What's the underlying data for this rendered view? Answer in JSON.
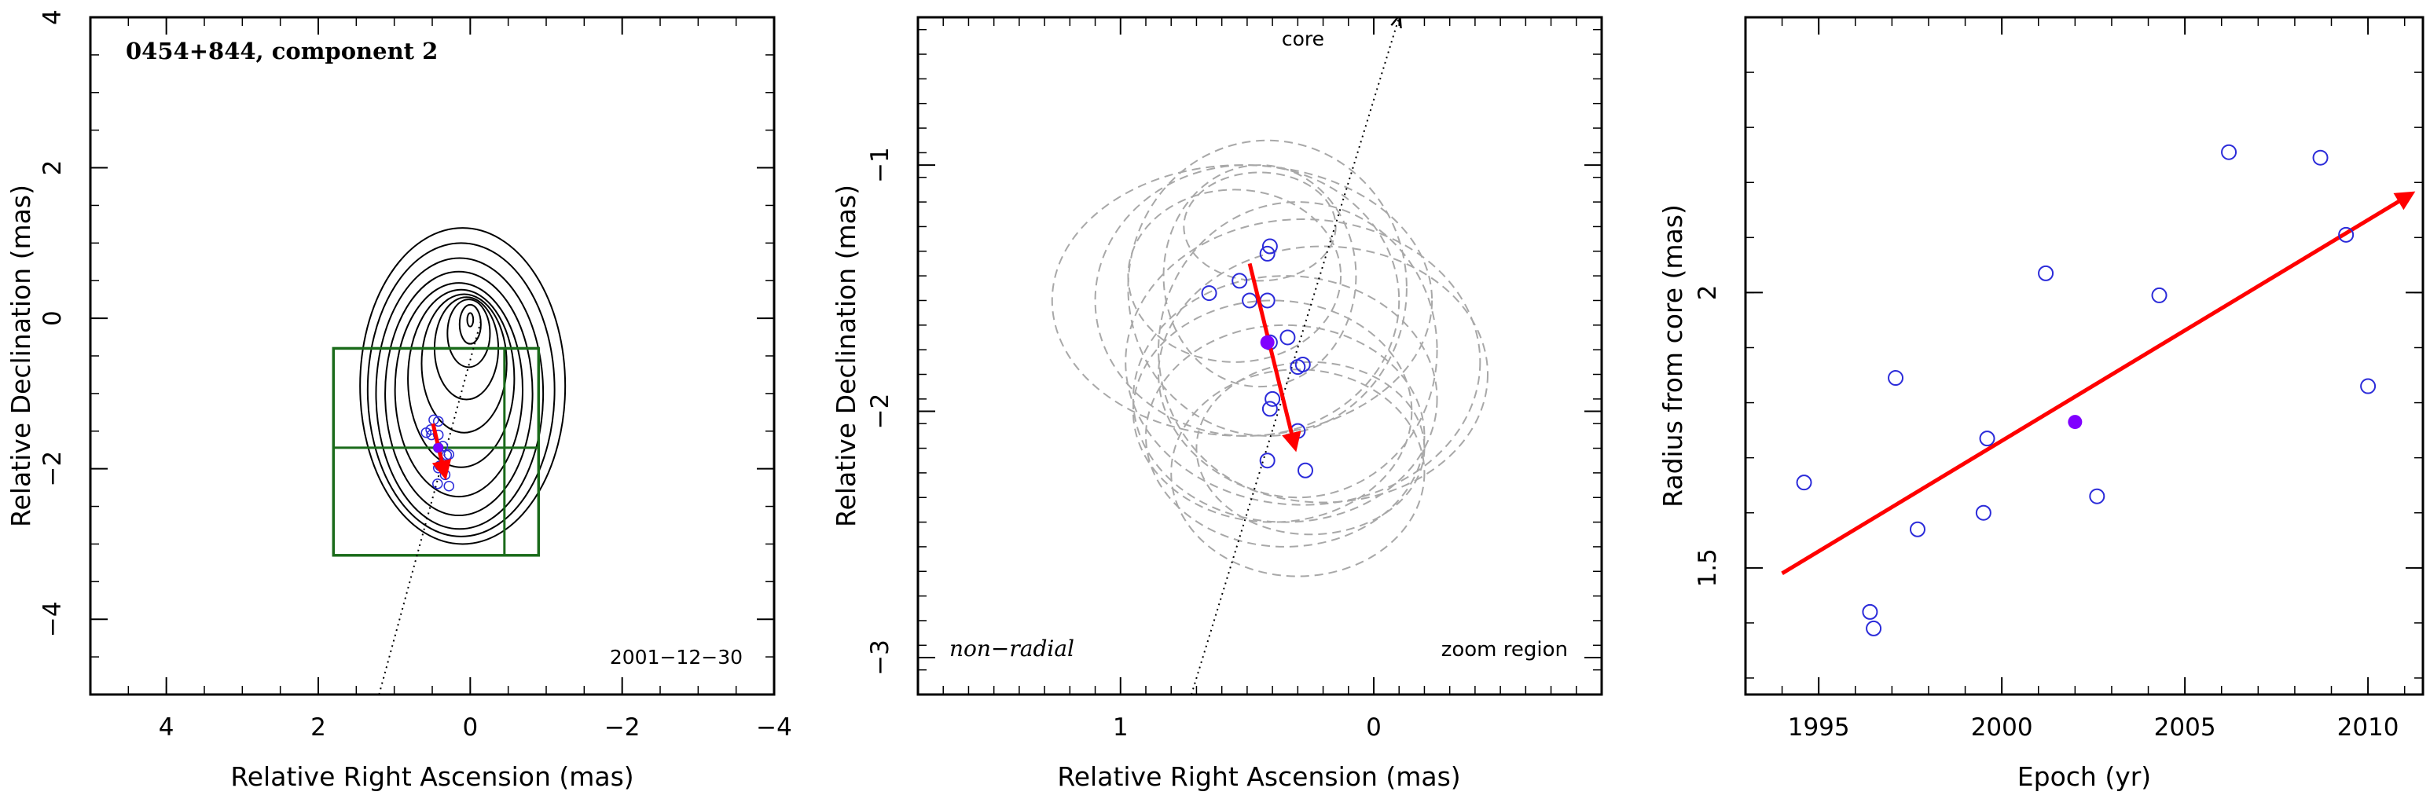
{
  "chart_data": [
    {
      "type": "scatter",
      "title": "0454+844, component 2",
      "annotation": "2001−12−30",
      "xlabel": "Relative Right Ascension (mas)",
      "ylabel": "Relative Declination (mas)",
      "xlim": [
        5,
        -4
      ],
      "ylim": [
        -5,
        4
      ],
      "xticks": [
        4,
        2,
        0,
        -2,
        -4
      ],
      "xtick_labels": [
        "4",
        "2",
        "0",
        "−2",
        "−4"
      ],
      "yticks": [
        -4,
        -2,
        0,
        2,
        4
      ],
      "ytick_labels": [
        "−4",
        "−2",
        "0",
        "2",
        "4"
      ],
      "contours": [
        {
          "cx": 0.1,
          "cy": -0.9,
          "rx": 1.35,
          "ry": 2.1
        },
        {
          "cx": 0.12,
          "cy": -0.95,
          "rx": 1.23,
          "ry": 1.95
        },
        {
          "cx": 0.14,
          "cy": -1.0,
          "rx": 1.1,
          "ry": 1.8
        },
        {
          "cx": 0.15,
          "cy": -1.0,
          "rx": 0.97,
          "ry": 1.62
        },
        {
          "cx": 0.15,
          "cy": -0.95,
          "rx": 0.84,
          "ry": 1.42
        },
        {
          "cx": 0.12,
          "cy": -0.8,
          "rx": 0.7,
          "ry": 1.18
        },
        {
          "cx": 0.08,
          "cy": -0.6,
          "rx": 0.56,
          "ry": 0.92
        },
        {
          "cx": 0.05,
          "cy": -0.4,
          "rx": 0.42,
          "ry": 0.68
        },
        {
          "cx": 0.02,
          "cy": -0.2,
          "rx": 0.28,
          "ry": 0.45
        },
        {
          "cx": 0.0,
          "cy": -0.08,
          "rx": 0.14,
          "ry": 0.26
        },
        {
          "cx": 0.0,
          "cy": -0.02,
          "rx": 0.04,
          "ry": 0.09
        }
      ],
      "zoom_box": {
        "x": [
          1.8,
          -0.9
        ],
        "y": [
          -3.15,
          -0.4
        ],
        "x_mid": -0.45,
        "y_mid": -1.72,
        "color": "#1a6b1a"
      },
      "jet_line": {
        "x": [
          1.2,
          -0.15
        ],
        "y": [
          -5.0,
          0.0
        ]
      },
      "points": {
        "ra": [
          0.48,
          0.42,
          0.42,
          0.58,
          0.52,
          0.51,
          0.42,
          0.36,
          0.31,
          0.28,
          0.4,
          0.42,
          0.33,
          0.43,
          0.28
        ],
        "dec": [
          -1.35,
          -1.37,
          -1.55,
          -1.52,
          -1.48,
          -1.55,
          -1.72,
          -1.7,
          -1.82,
          -1.81,
          -1.96,
          -1.99,
          -2.08,
          -2.2,
          -2.23
        ],
        "color": "#2b2bd9"
      },
      "mean_position": {
        "ra": 0.42,
        "dec": -1.72,
        "color": "#8000ff"
      },
      "motion_vector": {
        "from": [
          0.49,
          -1.4
        ],
        "to": [
          0.33,
          -2.1
        ],
        "color": "#ff0000"
      }
    },
    {
      "type": "scatter",
      "annotations": [
        "core",
        "non−radial",
        "zoom region"
      ],
      "xlabel": "Relative Right Ascension (mas)",
      "ylabel": "Relative Declination (mas)",
      "xlim": [
        1.8,
        -0.9
      ],
      "ylim": [
        -3.15,
        -0.4
      ],
      "xticks": [
        1,
        0
      ],
      "xtick_labels": [
        "1",
        "0"
      ],
      "yticks": [
        -3,
        -2,
        -1
      ],
      "ytick_labels": [
        "−3",
        "−2",
        "−1"
      ],
      "jet_line": {
        "x": [
          0.72,
          -0.1
        ],
        "y": [
          -3.15,
          -0.4
        ]
      },
      "points": {
        "ra": [
          0.41,
          0.42,
          0.42,
          0.65,
          0.53,
          0.49,
          0.41,
          0.34,
          0.3,
          0.28,
          0.4,
          0.41,
          0.3,
          0.42,
          0.27
        ],
        "dec": [
          -1.33,
          -1.36,
          -1.55,
          -1.52,
          -1.47,
          -1.55,
          -1.72,
          -1.7,
          -1.82,
          -1.81,
          -1.95,
          -1.99,
          -2.08,
          -2.2,
          -2.24
        ],
        "color": "#2b2bd9"
      },
      "mean_position": {
        "ra": 0.42,
        "dec": -1.72,
        "color": "#8000ff"
      },
      "error_ellipses": [
        {
          "cx": 0.45,
          "cy": -1.45,
          "rx": 0.38,
          "ry": 0.45
        },
        {
          "cx": 0.42,
          "cy": -1.5,
          "rx": 0.55,
          "ry": 0.6
        },
        {
          "cx": 0.5,
          "cy": -1.55,
          "rx": 0.6,
          "ry": 0.55
        },
        {
          "cx": 0.52,
          "cy": -1.55,
          "rx": 0.75,
          "ry": 0.55
        },
        {
          "cx": 0.3,
          "cy": -1.75,
          "rx": 0.55,
          "ry": 0.6
        },
        {
          "cx": 0.28,
          "cy": -1.8,
          "rx": 0.7,
          "ry": 0.58
        },
        {
          "cx": 0.2,
          "cy": -1.85,
          "rx": 0.65,
          "ry": 0.52
        },
        {
          "cx": 0.35,
          "cy": -1.95,
          "rx": 0.6,
          "ry": 0.5
        },
        {
          "cx": 0.4,
          "cy": -2.0,
          "rx": 0.55,
          "ry": 0.45
        },
        {
          "cx": 0.35,
          "cy": -2.1,
          "rx": 0.55,
          "ry": 0.45
        },
        {
          "cx": 0.3,
          "cy": -2.25,
          "rx": 0.5,
          "ry": 0.42
        },
        {
          "cx": 0.45,
          "cy": -1.25,
          "rx": 0.3,
          "ry": 0.22
        },
        {
          "cx": 0.55,
          "cy": -1.45,
          "rx": 0.42,
          "ry": 0.35
        },
        {
          "cx": 0.25,
          "cy": -2.15,
          "rx": 0.45,
          "ry": 0.35
        }
      ],
      "motion_vector": {
        "from": [
          0.49,
          -1.4
        ],
        "to": [
          0.31,
          -2.15
        ],
        "color": "#ff0000"
      }
    },
    {
      "type": "scatter",
      "xlabel": "Epoch (yr)",
      "ylabel": "Radius from core (mas)",
      "xlim": [
        1993,
        2011.5
      ],
      "ylim": [
        1.27,
        2.5
      ],
      "xticks": [
        1995,
        2000,
        2005,
        2010
      ],
      "xtick_labels": [
        "1995",
        "2000",
        "2005",
        "2010"
      ],
      "yticks": [
        1.5,
        2
      ],
      "ytick_labels": [
        "1.5",
        "2"
      ],
      "points": {
        "x": [
          1994.6,
          1996.4,
          1996.5,
          1997.1,
          1997.7,
          1999.5,
          1999.6,
          2001.2,
          2002.6,
          2004.3,
          2006.2,
          2008.7,
          2009.4,
          2010.0
        ],
        "y": [
          1.655,
          1.42,
          1.39,
          1.845,
          1.57,
          1.6,
          1.735,
          2.035,
          1.63,
          1.995,
          2.255,
          2.245,
          2.105,
          1.83
        ],
        "color": "#2b2bd9"
      },
      "mean_point": {
        "x": 2002.0,
        "y": 1.765,
        "color": "#8000ff"
      },
      "trend_vector": {
        "from": [
          1994.0,
          1.49
        ],
        "to": [
          2011.2,
          2.18
        ],
        "color": "#ff0000"
      }
    }
  ]
}
